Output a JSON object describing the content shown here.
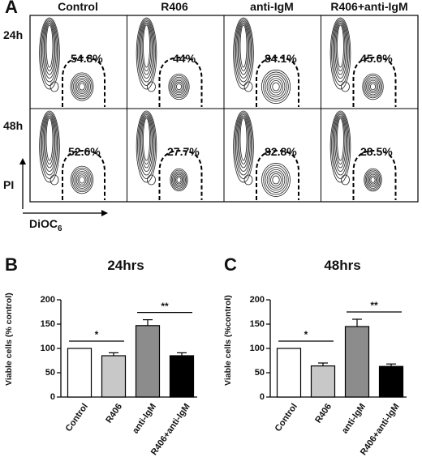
{
  "panel_a": {
    "letter": "A",
    "columns": [
      "Control",
      "R406",
      "anti-IgM",
      "R406+anti-IgM"
    ],
    "rows": [
      {
        "label": "24h",
        "values": [
          "54.8%",
          "44%",
          "84.1%",
          "45.0%"
        ]
      },
      {
        "label": "48h",
        "values": [
          "52.6%",
          "27.7%",
          "82.8%",
          "28.5%"
        ]
      }
    ],
    "y_axis_label": "PI",
    "x_axis_label": "DiOC",
    "x_axis_label_sub": "6"
  },
  "chart_data": [
    {
      "type": "bar",
      "panel": "B",
      "title": "24hrs",
      "ylabel": "Viable cells (% control)",
      "categories": [
        "Control",
        "R406",
        "anti-IgM",
        "R406+anti-IgM"
      ],
      "values": [
        100,
        85,
        147,
        85
      ],
      "errors": [
        0,
        6,
        12,
        6
      ],
      "colors": [
        "#ffffff",
        "#c8c8c8",
        "#8c8c8c",
        "#000000"
      ],
      "ylim": [
        0,
        200
      ],
      "yticks": [
        "0",
        "50",
        "100",
        "150",
        "200"
      ],
      "significance": [
        {
          "between": [
            0,
            1
          ],
          "label": "*"
        },
        {
          "between": [
            2,
            3
          ],
          "label": "**"
        }
      ]
    },
    {
      "type": "bar",
      "panel": "C",
      "title": "48hrs",
      "ylabel": "Viable cells (%control)",
      "categories": [
        "Control",
        "R406",
        "anti-IgM",
        "R406+anti-IgM"
      ],
      "values": [
        100,
        64,
        145,
        63
      ],
      "errors": [
        0,
        6,
        15,
        5
      ],
      "colors": [
        "#ffffff",
        "#c8c8c8",
        "#8c8c8c",
        "#000000"
      ],
      "ylim": [
        0,
        200
      ],
      "yticks": [
        "0",
        "50",
        "100",
        "150",
        "200"
      ],
      "significance": [
        {
          "between": [
            0,
            1
          ],
          "label": "*"
        },
        {
          "between": [
            2,
            3
          ],
          "label": "**"
        }
      ]
    }
  ]
}
